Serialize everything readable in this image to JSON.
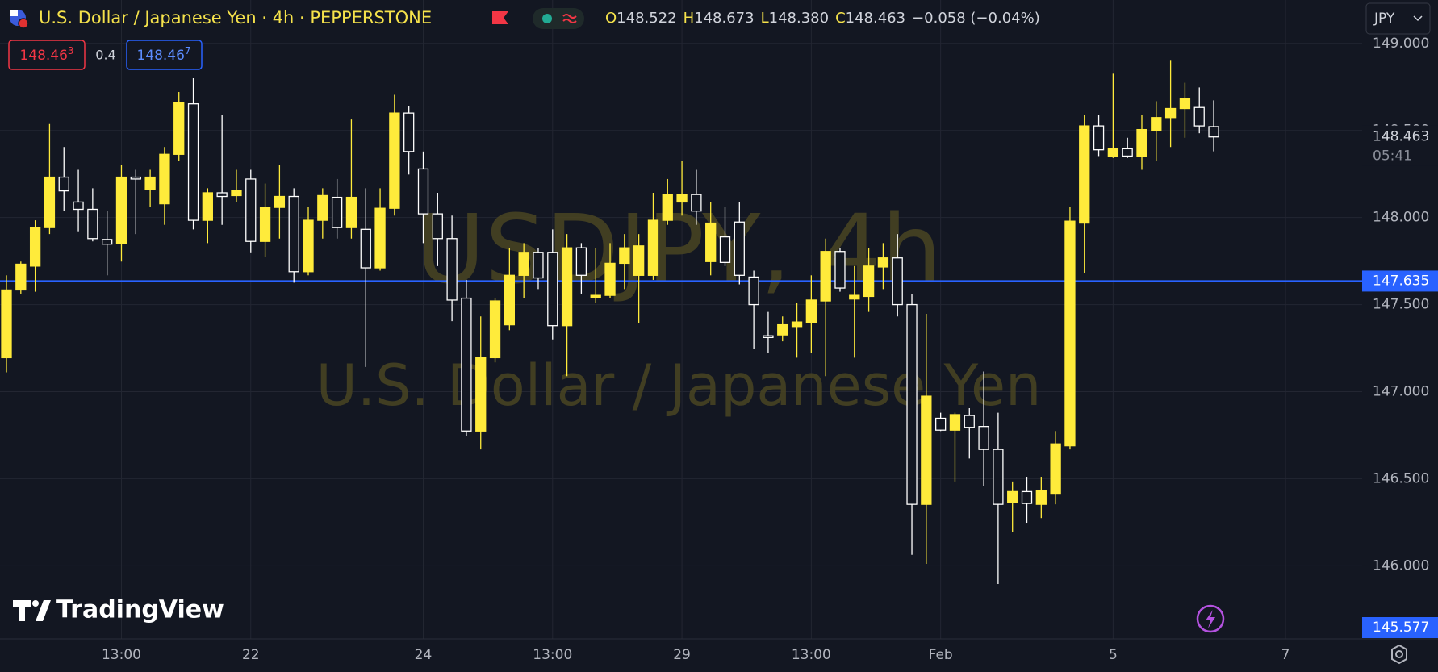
{
  "chart_data": {
    "type": "candlestick",
    "title": "U.S. Dollar / Japanese Yen · 4h · PEPPERSTONE",
    "watermark_symbol": "USDJPY, 4h",
    "watermark_name": "U.S. Dollar / Japanese Yen",
    "ohlc_header": [
      {
        "key": "O",
        "value": "148.522"
      },
      {
        "key": "H",
        "value": "148.673"
      },
      {
        "key": "L",
        "value": "148.380"
      },
      {
        "key": "C",
        "value": "148.463"
      }
    ],
    "change": "−0.058 (−0.04%)",
    "sell": {
      "price": "148.46",
      "pip": "3"
    },
    "spread": "0.4",
    "buy": {
      "price": "148.46",
      "pip": "7"
    },
    "currency": "JPY",
    "branding": "TradingView",
    "countdown": "05:41",
    "up_color": "#ffeb3b",
    "down_color": "#ffffff",
    "grid": true,
    "ylim": [
      145.58,
      149.05
    ],
    "yticks": [
      {
        "value": 146,
        "label": "146.000"
      },
      {
        "value": 146.5,
        "label": "146.500"
      },
      {
        "value": 147,
        "label": "147.000"
      },
      {
        "value": 147.5,
        "label": "147.500"
      },
      {
        "value": 148,
        "label": "148.000"
      },
      {
        "value": 148.5,
        "label": "148.500"
      },
      {
        "value": 149,
        "label": "149.000"
      }
    ],
    "price_lines": [
      {
        "value": 147.635,
        "color": "#2962ff"
      },
      {
        "value": 145.577,
        "color": "#2962ff"
      }
    ],
    "categories": [
      null,
      null,
      null,
      null,
      null,
      null,
      null,
      null,
      "13:00",
      null,
      null,
      null,
      null,
      null,
      null,
      null,
      null,
      "22",
      null,
      null,
      null,
      null,
      null,
      null,
      null,
      null,
      null,
      null,
      null,
      "24",
      null,
      null,
      null,
      null,
      null,
      null,
      null,
      null,
      "13:00",
      null,
      null,
      null,
      null,
      null,
      null,
      null,
      null,
      "29",
      null,
      null,
      null,
      null,
      null,
      null,
      null,
      null,
      "13:00",
      null,
      null,
      null,
      null,
      null,
      null,
      null,
      null,
      "Feb",
      null,
      null,
      null,
      null,
      null,
      null,
      null,
      null,
      null,
      null,
      null,
      "5",
      null,
      null,
      null,
      null,
      null,
      null,
      null,
      null,
      null,
      null,
      null,
      "7",
      null,
      null,
      null,
      null,
      null
    ],
    "open": [
      147.195,
      147.584,
      147.721,
      147.942,
      148.232,
      148.089,
      148.047,
      147.874,
      147.853,
      148.232,
      148.163,
      148.079,
      148.363,
      148.653,
      147.984,
      148.142,
      148.126,
      148.221,
      147.863,
      148.058,
      148.121,
      147.689,
      147.984,
      148.116,
      147.942,
      147.932,
      147.711,
      148.053,
      148.6,
      148.279,
      148.021,
      147.879,
      147.537,
      146.774,
      147.195,
      147.384,
      147.668,
      147.8,
      147.8,
      147.379,
      147.826,
      147.542,
      147.553,
      147.737,
      147.668,
      147.668,
      147.984,
      148.089,
      148.132,
      147.747,
      147.889,
      147.974,
      147.658,
      147.321,
      147.326,
      147.374,
      147.395,
      147.521,
      147.805,
      147.532,
      147.547,
      147.716,
      147.768,
      147.5,
      146.353,
      146.847,
      146.779,
      146.863,
      146.8,
      146.668,
      146.363,
      146.426,
      146.353,
      146.416,
      146.689,
      147.968,
      148.526,
      148.353,
      148.395,
      148.353,
      148.5,
      148.574,
      148.626,
      148.632,
      148.522,
      null,
      null,
      null,
      null,
      null,
      null,
      null,
      null,
      null,
      null
    ],
    "high": [
      147.668,
      147.747,
      147.984,
      148.537,
      148.405,
      148.274,
      148.168,
      148.037,
      148.3,
      148.274,
      148.274,
      148.405,
      148.721,
      148.8,
      148.168,
      148.589,
      148.274,
      148.274,
      148.195,
      148.3,
      148.168,
      148.063,
      148.168,
      148.221,
      148.563,
      148.168,
      148.168,
      148.705,
      148.642,
      148.379,
      148.142,
      148.011,
      147.642,
      147.432,
      147.537,
      147.826,
      147.853,
      147.826,
      147.932,
      147.905,
      147.853,
      147.826,
      147.853,
      147.905,
      147.905,
      148.142,
      148.221,
      148.326,
      148.274,
      148.089,
      148.063,
      148.089,
      147.695,
      147.458,
      147.432,
      147.511,
      147.668,
      147.879,
      147.826,
      147.721,
      147.826,
      147.853,
      147.905,
      147.563,
      147.447,
      146.879,
      146.879,
      146.905,
      147.116,
      146.879,
      146.484,
      146.511,
      146.511,
      146.774,
      148.063,
      148.589,
      148.589,
      148.826,
      148.458,
      148.589,
      148.668,
      148.905,
      148.774,
      148.747,
      148.673,
      null,
      null,
      null,
      null,
      null,
      null,
      null,
      null,
      null,
      null
    ],
    "low": [
      147.111,
      147.563,
      147.574,
      147.905,
      148.037,
      147.921,
      147.863,
      147.668,
      147.747,
      147.905,
      148.063,
      147.958,
      148.326,
      147.932,
      147.853,
      147.958,
      148.089,
      147.8,
      147.774,
      147.879,
      147.626,
      147.668,
      147.879,
      147.879,
      147.879,
      147.142,
      147.695,
      148.011,
      148.247,
      147.853,
      147.721,
      147.405,
      146.747,
      146.668,
      147.168,
      147.353,
      147.537,
      147.589,
      147.3,
      147.089,
      147.563,
      147.511,
      147.537,
      147.589,
      147.395,
      147.642,
      147.958,
      148.011,
      147.958,
      147.668,
      147.721,
      147.616,
      147.247,
      147.221,
      147.289,
      147.195,
      147.221,
      147.089,
      147.574,
      147.195,
      147.458,
      147.589,
      147.432,
      146.063,
      146.011,
      146.774,
      146.484,
      146.616,
      146.458,
      145.895,
      146.195,
      146.247,
      146.274,
      146.353,
      146.668,
      147.679,
      148.353,
      148.342,
      148.342,
      148.274,
      148.326,
      148.405,
      148.458,
      148.484,
      148.38,
      null,
      null,
      null,
      null,
      null,
      null,
      null,
      null,
      null,
      null
    ],
    "close": [
      147.584,
      147.732,
      147.942,
      148.232,
      148.153,
      148.047,
      147.879,
      147.847,
      148.232,
      148.221,
      148.232,
      148.363,
      148.658,
      147.984,
      148.142,
      148.121,
      148.153,
      147.863,
      148.058,
      148.121,
      147.689,
      147.984,
      148.126,
      147.942,
      148.116,
      147.711,
      148.053,
      148.6,
      148.379,
      148.021,
      147.879,
      147.526,
      146.774,
      147.195,
      147.521,
      147.668,
      147.8,
      147.653,
      147.379,
      147.826,
      147.668,
      147.553,
      147.737,
      147.826,
      147.837,
      147.984,
      148.132,
      148.132,
      148.037,
      147.968,
      147.742,
      147.668,
      147.5,
      147.311,
      147.384,
      147.4,
      147.526,
      147.805,
      147.595,
      147.553,
      147.721,
      147.768,
      147.5,
      146.353,
      146.974,
      146.779,
      146.868,
      146.795,
      146.668,
      146.353,
      146.426,
      146.358,
      146.432,
      146.7,
      147.979,
      148.526,
      148.389,
      148.395,
      148.353,
      148.505,
      148.574,
      148.626,
      148.684,
      148.526,
      148.463,
      null,
      null,
      null,
      null,
      null,
      null,
      null,
      null,
      null,
      null
    ]
  }
}
